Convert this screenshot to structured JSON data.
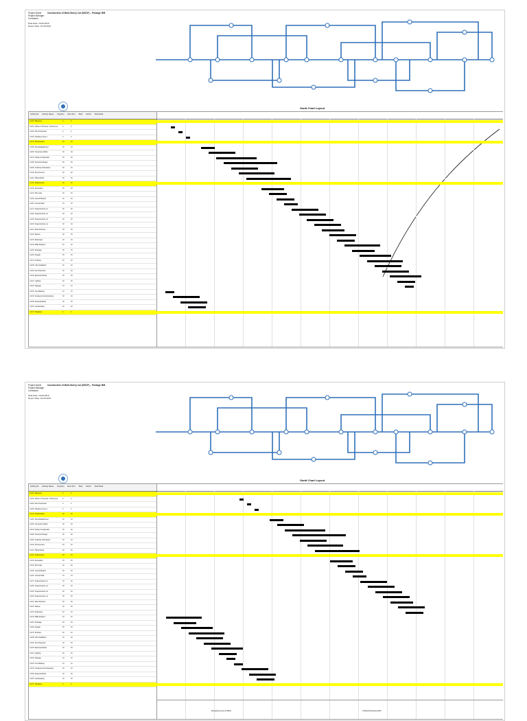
{
  "sheets": [
    {
      "header": {
        "project_name": "Project Name",
        "project_manager": "Project Manager",
        "contractor": "Contractor",
        "title_line": "Construction of Multi-Storey Car (MSCP) – Package B/B"
      },
      "meta": {
        "line1": "Data Date: 16-09-2016",
        "line2": "Report Date: 19-09-2016"
      },
      "gantt_title": "Gantt Chart Layout"
    },
    {
      "header": {
        "project_name": "Project Name",
        "project_manager": "Project Manager",
        "contractor": "Contractor",
        "title_line": "Construction of Multi-Storey Car (MSCP) – Package B/B"
      },
      "meta": {
        "line1": "Data Date: 16-09-2016",
        "line2": "Report Date: 19-09-2016"
      },
      "gantt_title": "Gantt Chart Layout"
    }
  ],
  "table": {
    "headers": [
      "Activity ID",
      "Activity Name",
      "Orig Dur",
      "Rem Dur",
      "Start",
      "Finish",
      "Total Float"
    ],
    "rows_sheet1": [
      {
        "id": "A1000",
        "name": "Milestone",
        "dur": "0",
        "rem": "0",
        "hl": true
      },
      {
        "id": "A1010",
        "name": "Notice to Proceed / Commence",
        "dur": "0",
        "rem": "0",
        "hl": false
      },
      {
        "id": "A1020",
        "name": "Site Possession",
        "dur": "0",
        "rem": "0",
        "hl": false
      },
      {
        "id": "A1030",
        "name": "Handover Area 1",
        "dur": "0",
        "rem": "0",
        "hl": false
      },
      {
        "id": "A1040",
        "name": "Preliminaries",
        "dur": "20",
        "rem": "20",
        "hl": true
      },
      {
        "id": "A1050",
        "name": "Site Establishment",
        "dur": "15",
        "rem": "15",
        "hl": false
      },
      {
        "id": "A1060",
        "name": "Temporary Works",
        "dur": "30",
        "rem": "30",
        "hl": false
      },
      {
        "id": "A1070",
        "name": "Design & Approvals",
        "dur": "45",
        "rem": "45",
        "hl": false
      },
      {
        "id": "A1080",
        "name": "Structural Design",
        "dur": "60",
        "rem": "60",
        "hl": false
      },
      {
        "id": "A1090",
        "name": "Authority Submission",
        "dur": "30",
        "rem": "30",
        "hl": false
      },
      {
        "id": "A1100",
        "name": "Procurement",
        "dur": "40",
        "rem": "40",
        "hl": false
      },
      {
        "id": "A1110",
        "name": "Piling Works",
        "dur": "50",
        "rem": "50",
        "hl": false
      },
      {
        "id": "A1120",
        "name": "Substructure",
        "dur": "40",
        "rem": "40",
        "hl": true
      },
      {
        "id": "A1130",
        "name": "Excavation",
        "dur": "25",
        "rem": "25",
        "hl": false
      },
      {
        "id": "A1140",
        "name": "Pile Caps",
        "dur": "20",
        "rem": "20",
        "hl": false
      },
      {
        "id": "A1150",
        "name": "Ground Beams",
        "dur": "20",
        "rem": "20",
        "hl": false
      },
      {
        "id": "A1160",
        "name": "Ground Slab",
        "dur": "15",
        "rem": "15",
        "hl": false
      },
      {
        "id": "A1170",
        "name": "Superstructure L1",
        "dur": "30",
        "rem": "30",
        "hl": false
      },
      {
        "id": "A1180",
        "name": "Superstructure L2",
        "dur": "30",
        "rem": "30",
        "hl": false
      },
      {
        "id": "A1190",
        "name": "Superstructure L3",
        "dur": "30",
        "rem": "30",
        "hl": false
      },
      {
        "id": "A1200",
        "name": "Superstructure L4",
        "dur": "30",
        "rem": "30",
        "hl": false
      },
      {
        "id": "A1210",
        "name": "Roof Structure",
        "dur": "25",
        "rem": "25",
        "hl": false
      },
      {
        "id": "A1220",
        "name": "Ramps",
        "dur": "30",
        "rem": "30",
        "hl": false
      },
      {
        "id": "A1230",
        "name": "Staircases",
        "dur": "20",
        "rem": "20",
        "hl": false
      },
      {
        "id": "A1240",
        "name": "M&E Rough-in",
        "dur": "40",
        "rem": "40",
        "hl": false
      },
      {
        "id": "A1250",
        "name": "Drainage",
        "dur": "25",
        "rem": "25",
        "hl": false
      },
      {
        "id": "A1260",
        "name": "Façade",
        "dur": "35",
        "rem": "35",
        "hl": false
      },
      {
        "id": "A1270",
        "name": "Finishes",
        "dur": "40",
        "rem": "40",
        "hl": false
      },
      {
        "id": "A1280",
        "name": "Lifts Installation",
        "dur": "30",
        "rem": "30",
        "hl": false
      },
      {
        "id": "A1290",
        "name": "Fire Protection",
        "dur": "30",
        "rem": "30",
        "hl": false
      },
      {
        "id": "A1300",
        "name": "Electrical Works",
        "dur": "35",
        "rem": "35",
        "hl": false
      },
      {
        "id": "A1310",
        "name": "Lighting",
        "dur": "20",
        "rem": "20",
        "hl": false
      },
      {
        "id": "A1320",
        "name": "Signage",
        "dur": "10",
        "rem": "10",
        "hl": false
      },
      {
        "id": "A1330",
        "name": "Line Marking",
        "dur": "10",
        "rem": "10",
        "hl": false
      },
      {
        "id": "A1340",
        "name": "Testing & Commissioning",
        "dur": "30",
        "rem": "30",
        "hl": false
      },
      {
        "id": "A1350",
        "name": "External Works",
        "dur": "30",
        "rem": "30",
        "hl": false
      },
      {
        "id": "A1360",
        "name": "Landscaping",
        "dur": "20",
        "rem": "20",
        "hl": false
      },
      {
        "id": "A1370",
        "name": "Handover",
        "dur": "0",
        "rem": "0",
        "hl": true
      }
    ]
  },
  "footer": {
    "legend_left": "Remaining Level of Effort",
    "legend_right": "Critical Remaining Work"
  }
}
